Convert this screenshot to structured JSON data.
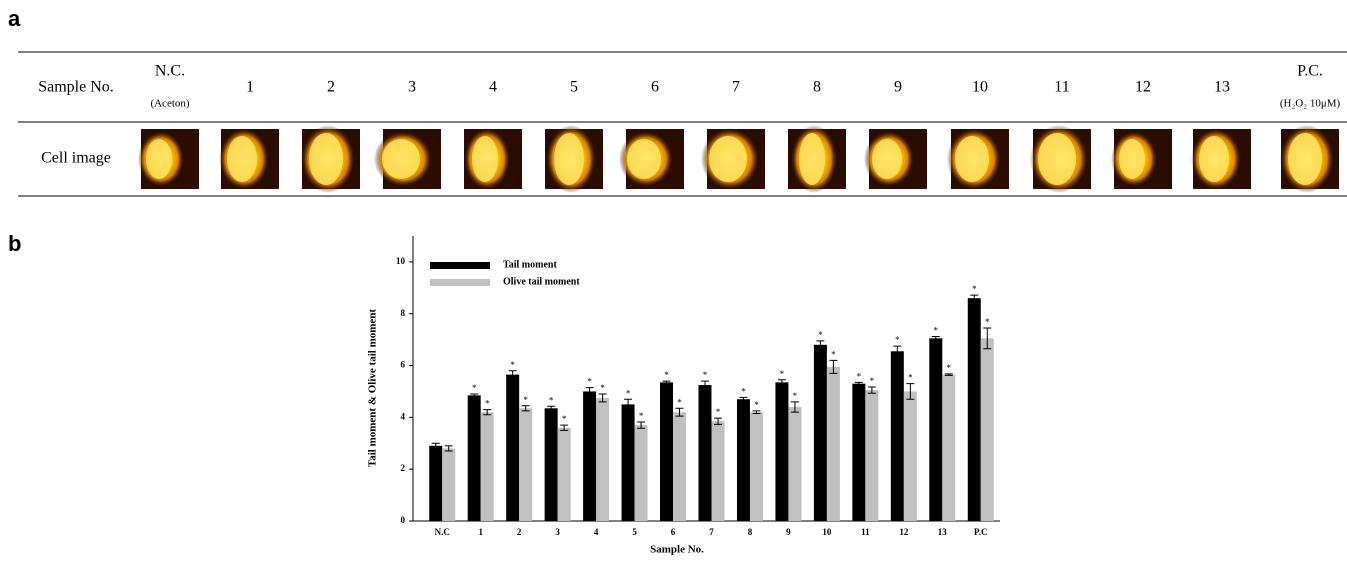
{
  "figure": {
    "panel_a": "a",
    "panel_b": "b"
  },
  "table": {
    "row_labels": [
      "Sample No.",
      "Cell image"
    ],
    "columns": [
      {
        "name": "N.C.",
        "sub": "(Aceton)"
      },
      {
        "name": "1"
      },
      {
        "name": "2"
      },
      {
        "name": "3"
      },
      {
        "name": "4"
      },
      {
        "name": "5"
      },
      {
        "name": "6"
      },
      {
        "name": "7"
      },
      {
        "name": "8"
      },
      {
        "name": "9"
      },
      {
        "name": "10"
      },
      {
        "name": "11"
      },
      {
        "name": "12"
      },
      {
        "name": "13"
      },
      {
        "name": "P.C.",
        "sub": "(H₂O₂ 10μM)"
      }
    ]
  },
  "chart_data": {
    "type": "bar",
    "x_label": "Sample No.",
    "y_label": "Tail moment & Olive tail moment",
    "categories": [
      "N.C",
      "1",
      "2",
      "3",
      "4",
      "5",
      "6",
      "7",
      "8",
      "9",
      "10",
      "11",
      "12",
      "13",
      "P.C"
    ],
    "ylim": [
      0,
      11
    ],
    "yticks": [
      0,
      2,
      4,
      6,
      8,
      10
    ],
    "legend": "upper left",
    "series": [
      {
        "name": "Tail moment",
        "color": "#000000",
        "values": [
          2.9,
          4.85,
          5.65,
          4.35,
          5.0,
          4.5,
          5.35,
          5.25,
          4.7,
          5.35,
          6.8,
          5.3,
          6.55,
          7.05,
          8.6
        ],
        "errors": [
          0.1,
          0.05,
          0.15,
          0.08,
          0.15,
          0.2,
          0.05,
          0.15,
          0.07,
          0.1,
          0.15,
          0.05,
          0.2,
          0.07,
          0.12
        ],
        "significance": [
          null,
          "*",
          "*",
          "*",
          "*",
          "*",
          "*",
          "*",
          "*",
          "*",
          "*",
          "*",
          "*",
          "*",
          "*"
        ]
      },
      {
        "name": "Olive tail moment",
        "color": "#c0c0c0",
        "values": [
          2.8,
          4.2,
          4.35,
          3.6,
          4.75,
          3.7,
          4.2,
          3.85,
          4.2,
          4.4,
          5.95,
          5.05,
          5.0,
          5.65,
          7.05
        ],
        "errors": [
          0.1,
          0.1,
          0.1,
          0.1,
          0.15,
          0.12,
          0.15,
          0.12,
          0.05,
          0.2,
          0.25,
          0.12,
          0.3,
          0.03,
          0.4
        ],
        "significance": [
          null,
          "*",
          "*",
          "*",
          "*",
          "*",
          "*",
          "*",
          "*",
          "*",
          "*",
          "*",
          "*",
          "*",
          "*"
        ]
      }
    ]
  }
}
